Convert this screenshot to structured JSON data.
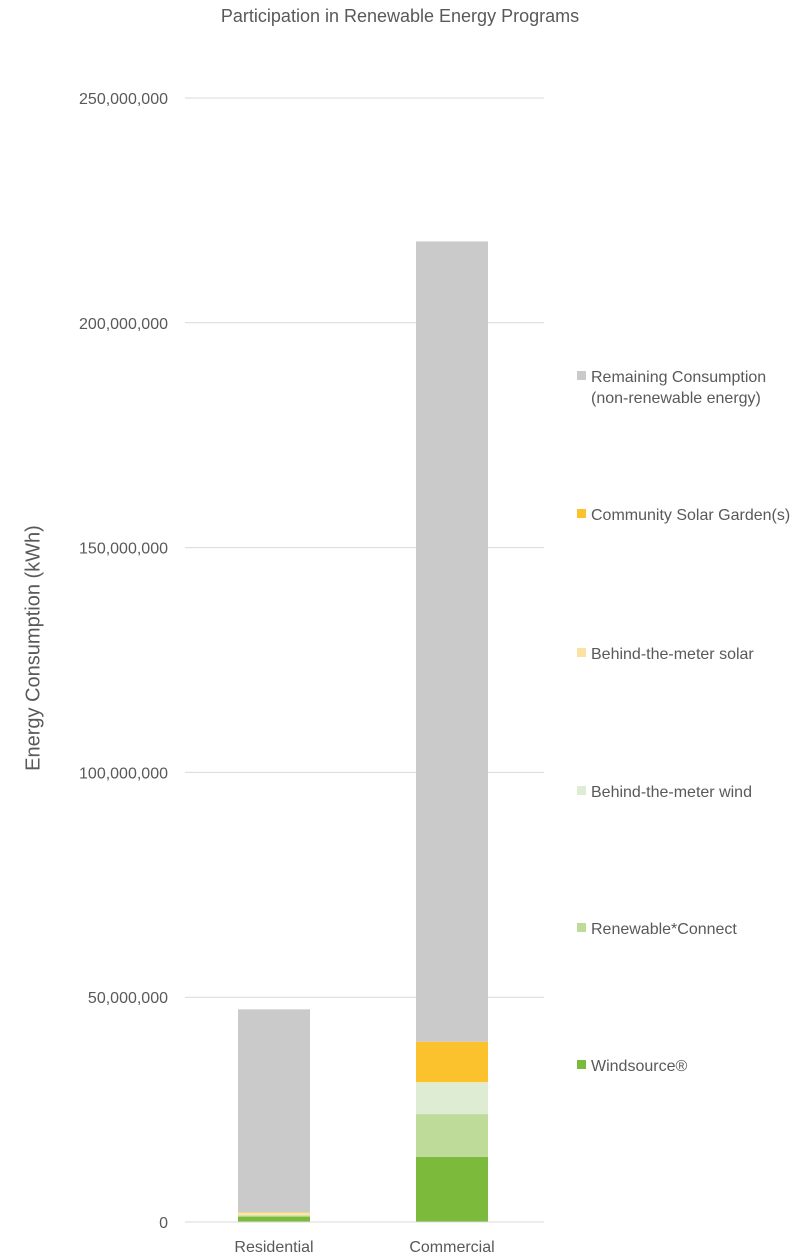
{
  "chart_data": {
    "type": "bar",
    "stacked": true,
    "title": "Participation in Renewable Energy Programs",
    "xlabel": "",
    "ylabel": "Energy Consumption  (kWh)",
    "ylim": [
      0,
      250000000
    ],
    "y_ticks": [
      0,
      50000000,
      100000000,
      150000000,
      200000000,
      250000000
    ],
    "y_tick_labels": [
      "0",
      "50,000,000",
      "100,000,000",
      "150,000,000",
      "200,000,000",
      "250,000,000"
    ],
    "categories": [
      "Residential",
      "Commercial"
    ],
    "grid": true,
    "legend_position": "right",
    "series": [
      {
        "name": "Windsource®",
        "color": "#7cba3c",
        "values": [
          1200000,
          14500000
        ]
      },
      {
        "name": "Renewable*Connect",
        "color": "#bedb9a",
        "values": [
          300000,
          9500000
        ]
      },
      {
        "name": "Behind-the-meter wind",
        "color": "#deecd3",
        "values": [
          100000,
          7000000
        ]
      },
      {
        "name": "Behind-the-meter solar",
        "color": "#fbe2a3",
        "values": [
          500000,
          100000
        ]
      },
      {
        "name": "Community Solar Garden(s)",
        "color": "#fcc22e",
        "values": [
          100000,
          9000000
        ]
      },
      {
        "name": "Remaining Consumption (non-renewable energy)",
        "color": "#cbcacb",
        "values": [
          45100000,
          178000000
        ]
      }
    ]
  }
}
